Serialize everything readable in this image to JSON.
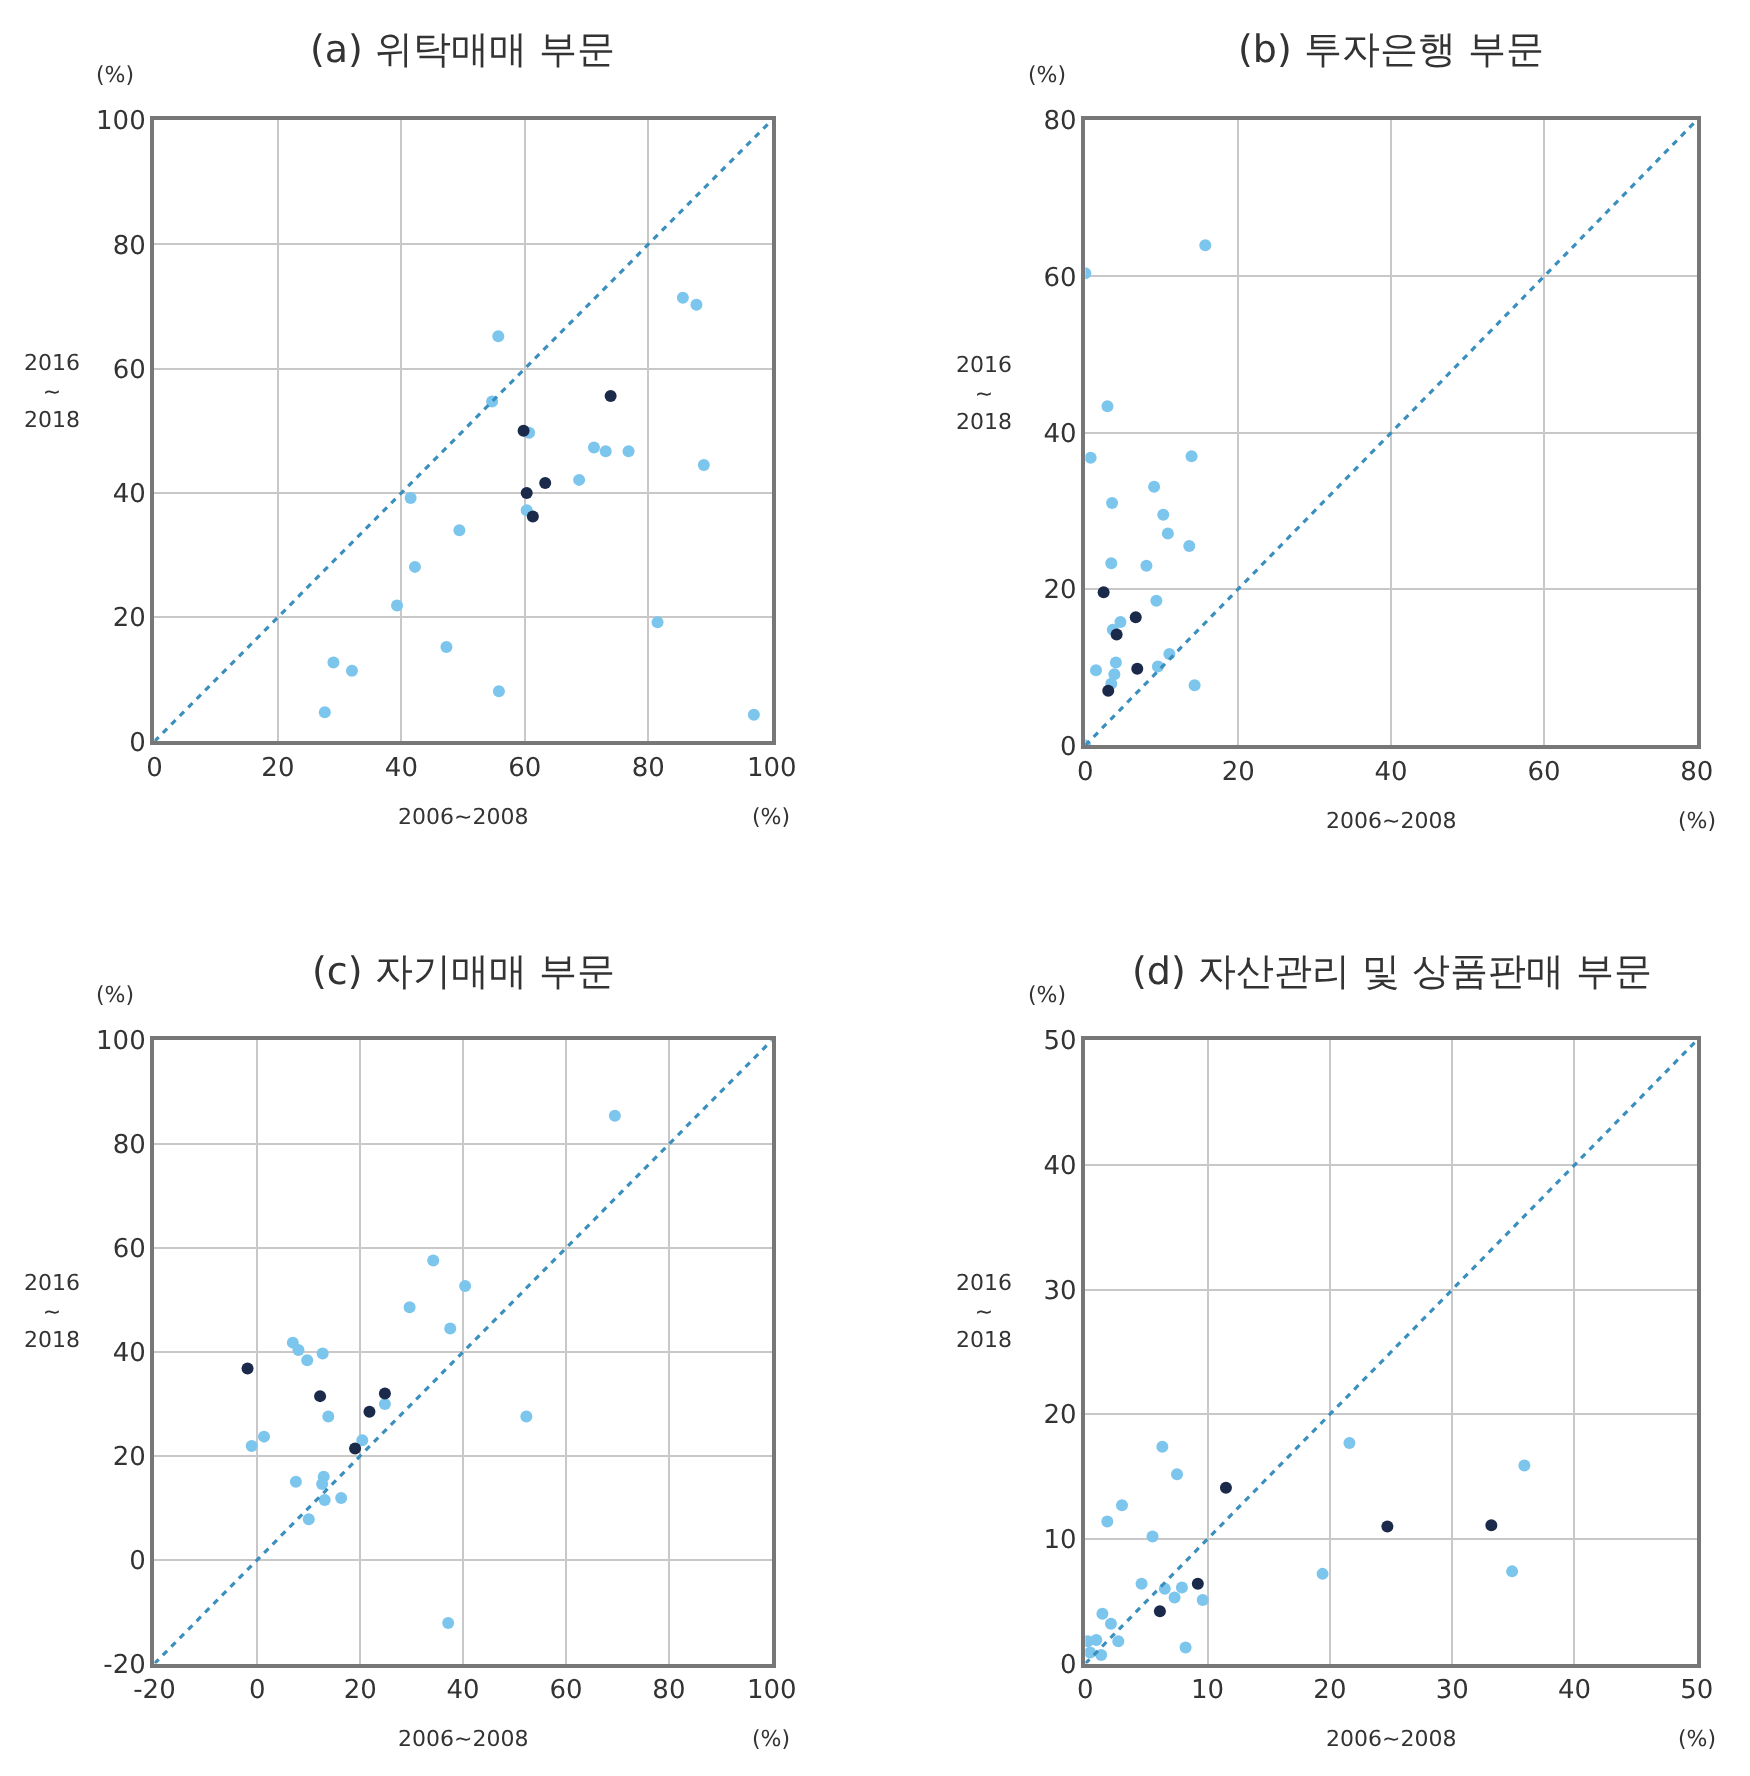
{
  "chart_data": [
    {
      "type": "scatter",
      "title": "(a) 위탁매매 부문",
      "xlabel": "2006~2008",
      "ylabel": "2016\n~\n2018",
      "annotations": [
        "(%)",
        "(%)"
      ],
      "xlim": [
        0,
        100
      ],
      "ylim": [
        0,
        100
      ],
      "xticks": [
        0,
        20,
        40,
        60,
        80,
        100
      ],
      "yticks": [
        0,
        20,
        40,
        60,
        80,
        100
      ],
      "grid": true,
      "marker": "circle",
      "series": [
        {
          "color": "#7cc5ec",
          "x": [
            55.7,
            85.6,
            87.8,
            54.7,
            60.7,
            71.2,
            73.1,
            76.8,
            89.0,
            68.8,
            41.5,
            60.3,
            49.4,
            42.2,
            39.3,
            81.5,
            47.3,
            29.0,
            32.0,
            55.8,
            27.6,
            97.1
          ],
          "values": [
            65.2,
            71.4,
            70.3,
            54.7,
            49.7,
            47.3,
            46.7,
            46.7,
            44.5,
            42.1,
            39.2,
            37.2,
            34.0,
            28.1,
            21.9,
            19.2,
            15.2,
            12.7,
            11.4,
            8.1,
            4.7,
            4.3
          ]
        },
        {
          "color": "#1b2a4a",
          "x": [
            73.9,
            59.8,
            63.3,
            60.3,
            61.3
          ],
          "values": [
            55.6,
            50.0,
            41.6,
            40.0,
            36.2
          ]
        },
        {
          "type": "line",
          "color": "#3a8fbf",
          "line_style": "dotted",
          "marker": "none",
          "x": [
            0,
            100
          ],
          "values": [
            0,
            100
          ]
        }
      ]
    },
    {
      "type": "scatter",
      "title": "(b) 투자은행 부문",
      "xlabel": "2006~2008",
      "ylabel": "2016\n~\n2018",
      "annotations": [
        "(%)",
        "(%)"
      ],
      "xlim": [
        0,
        80
      ],
      "ylim": [
        0,
        80
      ],
      "xticks": [
        0,
        20,
        40,
        60,
        80
      ],
      "yticks": [
        0,
        20,
        40,
        60,
        80
      ],
      "grid": true,
      "marker": "circle",
      "series": [
        {
          "color": "#7cc5ec",
          "x": [
            15.7,
            0,
            2.9,
            0.7,
            13.9,
            9.0,
            3.5,
            10.2,
            10.8,
            13.6,
            3.4,
            8.0,
            9.3,
            4.6,
            3.6,
            4.0,
            11.0,
            1.4,
            3.8,
            9.5,
            3.4,
            14.3,
            0
          ],
          "values": [
            64.0,
            60.4,
            43.4,
            36.8,
            37.0,
            33.1,
            31.0,
            29.5,
            27.1,
            25.5,
            23.3,
            23.0,
            18.5,
            15.8,
            14.8,
            10.6,
            11.7,
            9.6,
            9.1,
            10.1,
            7.9,
            7.7,
            0
          ]
        },
        {
          "color": "#1b2a4a",
          "x": [
            2.4,
            6.6,
            4.1,
            6.8,
            3.0
          ],
          "values": [
            19.6,
            16.4,
            14.2,
            9.8,
            7.0
          ]
        },
        {
          "type": "line",
          "color": "#3a8fbf",
          "line_style": "dotted",
          "marker": "none",
          "x": [
            0,
            80
          ],
          "values": [
            0,
            80
          ]
        }
      ]
    },
    {
      "type": "scatter",
      "title": "(c) 자기매매 부문",
      "xlabel": "2006~2008",
      "ylabel": "2016\n~\n2018",
      "annotations": [
        "(%)",
        "(%)"
      ],
      "xlim": [
        -20,
        100
      ],
      "ylim": [
        -20,
        100
      ],
      "xticks": [
        -20,
        0,
        20,
        40,
        60,
        80,
        100
      ],
      "yticks": [
        -20,
        0,
        20,
        40,
        60,
        80,
        100
      ],
      "grid": true,
      "marker": "circle",
      "series": [
        {
          "color": "#7cc5ec",
          "x": [
            69.5,
            34.2,
            40.4,
            29.6,
            37.5,
            6.9,
            8.0,
            12.7,
            9.7,
            24.8,
            13.8,
            52.3,
            1.3,
            -1.1,
            20.4,
            7.5,
            12.9,
            12.6,
            13.1,
            16.3,
            10.0,
            37.1
          ],
          "values": [
            85.5,
            57.6,
            52.7,
            48.6,
            44.5,
            41.8,
            40.4,
            39.7,
            38.4,
            30.0,
            27.6,
            27.6,
            23.7,
            21.9,
            23.0,
            15.0,
            16.0,
            14.6,
            11.5,
            11.9,
            7.8,
            -12.2
          ]
        },
        {
          "color": "#1b2a4a",
          "x": [
            -1.9,
            12.2,
            24.8,
            21.8,
            19.0
          ],
          "values": [
            36.8,
            31.5,
            32.0,
            28.5,
            21.4
          ]
        },
        {
          "type": "line",
          "color": "#3a8fbf",
          "line_style": "dotted",
          "marker": "none",
          "x": [
            -20,
            100
          ],
          "values": [
            -20,
            100
          ]
        }
      ]
    },
    {
      "type": "scatter",
      "title": "(d) 자산관리 및 상품판매 부문",
      "xlabel": "2006~2008",
      "ylabel": "2016\n~\n2018",
      "annotations": [
        "(%)",
        "(%)"
      ],
      "xlim": [
        0,
        50
      ],
      "ylim": [
        0,
        50
      ],
      "xticks": [
        0,
        10,
        20,
        30,
        40,
        50
      ],
      "yticks": [
        0,
        10,
        20,
        30,
        40,
        50
      ],
      "grid": true,
      "marker": "circle",
      "series": [
        {
          "color": "#7cc5ec",
          "x": [
            6.3,
            21.6,
            35.9,
            7.5,
            3.0,
            1.8,
            5.5,
            19.4,
            34.9,
            4.6,
            6.5,
            7.9,
            7.3,
            9.6,
            1.4,
            2.1,
            2.7,
            0.9,
            0.2,
            0.4,
            1.3,
            8.2
          ],
          "values": [
            17.4,
            17.7,
            15.9,
            15.2,
            12.7,
            11.4,
            10.2,
            7.2,
            7.4,
            6.4,
            6.0,
            6.1,
            5.3,
            5.1,
            4.0,
            3.2,
            1.8,
            1.9,
            1.8,
            0.9,
            0.7,
            1.3
          ]
        },
        {
          "color": "#1b2a4a",
          "x": [
            11.5,
            24.7,
            33.2,
            9.2,
            6.1
          ],
          "values": [
            14.1,
            11.0,
            11.1,
            6.4,
            4.2
          ]
        },
        {
          "type": "line",
          "color": "#3a8fbf",
          "line_style": "dotted",
          "marker": "none",
          "x": [
            0,
            50
          ],
          "values": [
            0,
            50
          ]
        }
      ]
    }
  ]
}
